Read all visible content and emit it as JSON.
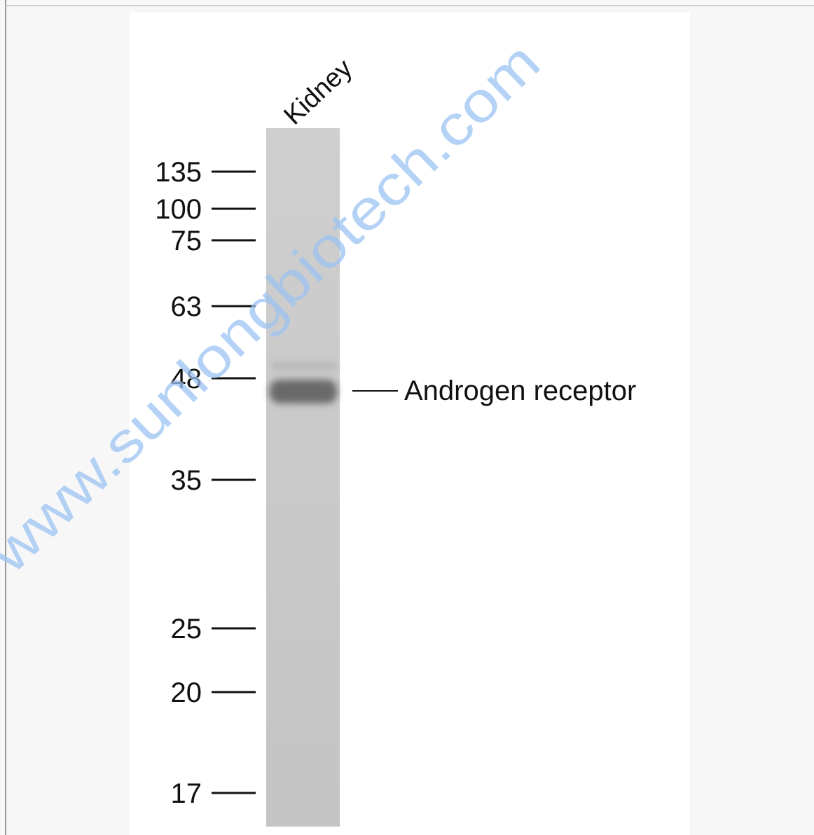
{
  "figure": {
    "lane_label": "Kidney",
    "markers": [
      135,
      100,
      75,
      63,
      48,
      35,
      25,
      20,
      17
    ],
    "band_label": "Androgen receptor",
    "watermark": "www.sunlongbiotech.com"
  }
}
